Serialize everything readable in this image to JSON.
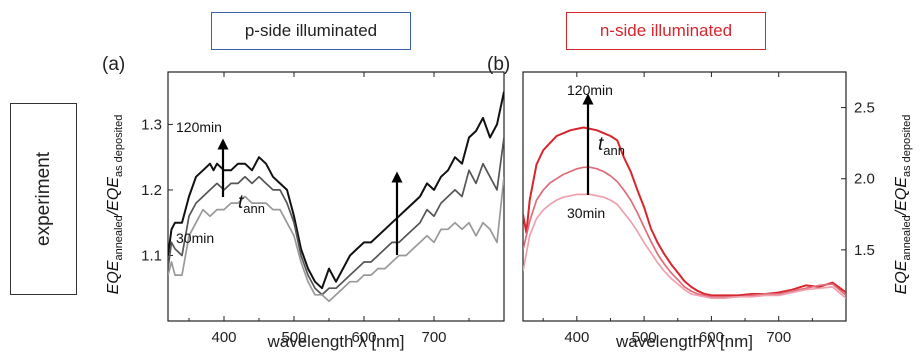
{
  "row_label": "experiment",
  "chart_data": [
    {
      "type": "line",
      "header": "p-side illuminated",
      "panel_label": "(a)",
      "xlabel": "wavelength λ [nm]",
      "ylabel_main": "EQE",
      "ylabel_sub1": "annealed",
      "ylabel_sep": "/EQE",
      "ylabel_sub2": "as deposited",
      "xlim": [
        320,
        800
      ],
      "ylim": [
        1.0,
        1.38
      ],
      "xticks": [
        400,
        500,
        600,
        700
      ],
      "yticks": [
        1.1,
        1.2,
        1.3
      ],
      "annotations": {
        "top": "120min",
        "bottom": "30min",
        "t_main": "t",
        "t_sub": "ann"
      },
      "colors": [
        "#111111",
        "#555555",
        "#999999"
      ],
      "series": [
        {
          "values": [
            [
              320,
              1.1
            ],
            [
              325,
              1.14
            ],
            [
              330,
              1.15
            ],
            [
              340,
              1.15
            ],
            [
              350,
              1.19
            ],
            [
              360,
              1.22
            ],
            [
              370,
              1.23
            ],
            [
              380,
              1.24
            ],
            [
              385,
              1.23
            ],
            [
              390,
              1.24
            ],
            [
              400,
              1.23
            ],
            [
              410,
              1.23
            ],
            [
              420,
              1.24
            ],
            [
              430,
              1.24
            ],
            [
              440,
              1.23
            ],
            [
              450,
              1.25
            ],
            [
              460,
              1.24
            ],
            [
              470,
              1.22
            ],
            [
              480,
              1.21
            ],
            [
              490,
              1.2
            ],
            [
              500,
              1.16
            ],
            [
              510,
              1.11
            ],
            [
              520,
              1.08
            ],
            [
              530,
              1.06
            ],
            [
              540,
              1.05
            ],
            [
              550,
              1.08
            ],
            [
              560,
              1.06
            ],
            [
              570,
              1.08
            ],
            [
              580,
              1.1
            ],
            [
              590,
              1.11
            ],
            [
              600,
              1.12
            ],
            [
              610,
              1.12
            ],
            [
              620,
              1.13
            ],
            [
              630,
              1.14
            ],
            [
              640,
              1.15
            ],
            [
              650,
              1.16
            ],
            [
              660,
              1.17
            ],
            [
              670,
              1.18
            ],
            [
              680,
              1.19
            ],
            [
              690,
              1.21
            ],
            [
              700,
              1.2
            ],
            [
              710,
              1.22
            ],
            [
              720,
              1.23
            ],
            [
              730,
              1.25
            ],
            [
              740,
              1.24
            ],
            [
              750,
              1.28
            ],
            [
              760,
              1.29
            ],
            [
              770,
              1.31
            ],
            [
              780,
              1.28
            ],
            [
              790,
              1.3
            ],
            [
              800,
              1.35
            ]
          ]
        },
        {
          "values": [
            [
              320,
              1.08
            ],
            [
              325,
              1.12
            ],
            [
              330,
              1.11
            ],
            [
              340,
              1.1
            ],
            [
              350,
              1.16
            ],
            [
              360,
              1.18
            ],
            [
              370,
              1.19
            ],
            [
              380,
              1.2
            ],
            [
              390,
              1.21
            ],
            [
              400,
              1.2
            ],
            [
              410,
              1.21
            ],
            [
              420,
              1.21
            ],
            [
              430,
              1.22
            ],
            [
              440,
              1.21
            ],
            [
              450,
              1.22
            ],
            [
              460,
              1.21
            ],
            [
              470,
              1.2
            ],
            [
              480,
              1.2
            ],
            [
              490,
              1.18
            ],
            [
              500,
              1.15
            ],
            [
              510,
              1.1
            ],
            [
              520,
              1.07
            ],
            [
              530,
              1.05
            ],
            [
              540,
              1.04
            ],
            [
              550,
              1.05
            ],
            [
              560,
              1.05
            ],
            [
              570,
              1.06
            ],
            [
              580,
              1.07
            ],
            [
              590,
              1.08
            ],
            [
              600,
              1.09
            ],
            [
              610,
              1.09
            ],
            [
              620,
              1.1
            ],
            [
              630,
              1.11
            ],
            [
              640,
              1.12
            ],
            [
              650,
              1.12
            ],
            [
              660,
              1.13
            ],
            [
              670,
              1.14
            ],
            [
              680,
              1.15
            ],
            [
              690,
              1.17
            ],
            [
              700,
              1.16
            ],
            [
              710,
              1.18
            ],
            [
              720,
              1.19
            ],
            [
              730,
              1.2
            ],
            [
              740,
              1.19
            ],
            [
              750,
              1.23
            ],
            [
              760,
              1.21
            ],
            [
              770,
              1.24
            ],
            [
              780,
              1.22
            ],
            [
              790,
              1.2
            ],
            [
              800,
              1.28
            ]
          ]
        },
        {
          "values": [
            [
              320,
              1.07
            ],
            [
              325,
              1.09
            ],
            [
              330,
              1.07
            ],
            [
              340,
              1.07
            ],
            [
              350,
              1.13
            ],
            [
              360,
              1.15
            ],
            [
              370,
              1.17
            ],
            [
              380,
              1.16
            ],
            [
              390,
              1.17
            ],
            [
              400,
              1.17
            ],
            [
              410,
              1.18
            ],
            [
              420,
              1.18
            ],
            [
              430,
              1.19
            ],
            [
              440,
              1.18
            ],
            [
              450,
              1.18
            ],
            [
              460,
              1.18
            ],
            [
              470,
              1.17
            ],
            [
              480,
              1.17
            ],
            [
              490,
              1.15
            ],
            [
              500,
              1.13
            ],
            [
              510,
              1.09
            ],
            [
              520,
              1.06
            ],
            [
              530,
              1.04
            ],
            [
              540,
              1.04
            ],
            [
              550,
              1.03
            ],
            [
              560,
              1.04
            ],
            [
              570,
              1.05
            ],
            [
              580,
              1.06
            ],
            [
              590,
              1.06
            ],
            [
              600,
              1.07
            ],
            [
              610,
              1.07
            ],
            [
              620,
              1.08
            ],
            [
              630,
              1.08
            ],
            [
              640,
              1.09
            ],
            [
              650,
              1.1
            ],
            [
              660,
              1.1
            ],
            [
              670,
              1.11
            ],
            [
              680,
              1.12
            ],
            [
              690,
              1.13
            ],
            [
              700,
              1.12
            ],
            [
              710,
              1.14
            ],
            [
              720,
              1.14
            ],
            [
              730,
              1.15
            ],
            [
              740,
              1.14
            ],
            [
              750,
              1.15
            ],
            [
              760,
              1.13
            ],
            [
              770,
              1.15
            ],
            [
              780,
              1.14
            ],
            [
              790,
              1.12
            ],
            [
              800,
              1.22
            ]
          ]
        }
      ]
    },
    {
      "type": "line",
      "header": "n-side illuminated",
      "panel_label": "(b)",
      "xlabel": "wavelength λ [nm]",
      "ylabel_main": "EQE",
      "ylabel_sub1": "annealed",
      "ylabel_sep": "/EQE",
      "ylabel_sub2": "as deposited",
      "xlim": [
        320,
        800
      ],
      "ylim": [
        1.0,
        2.75
      ],
      "yaxis_side": "right",
      "xticks": [
        400,
        500,
        600,
        700
      ],
      "yticks": [
        1.5,
        2.0,
        2.5
      ],
      "annotations": {
        "top": "120min",
        "bottom": "30min",
        "t_main": "t",
        "t_sub": "ann"
      },
      "colors": [
        "#d8262d",
        "#e06b7a",
        "#f0a0ac"
      ],
      "series": [
        {
          "values": [
            [
              320,
              1.75
            ],
            [
              325,
              1.62
            ],
            [
              330,
              1.85
            ],
            [
              340,
              2.1
            ],
            [
              350,
              2.2
            ],
            [
              360,
              2.25
            ],
            [
              370,
              2.3
            ],
            [
              380,
              2.32
            ],
            [
              390,
              2.34
            ],
            [
              400,
              2.35
            ],
            [
              410,
              2.36
            ],
            [
              420,
              2.35
            ],
            [
              430,
              2.34
            ],
            [
              440,
              2.32
            ],
            [
              450,
              2.3
            ],
            [
              460,
              2.27
            ],
            [
              470,
              2.15
            ],
            [
              480,
              2.05
            ],
            [
              490,
              1.92
            ],
            [
              500,
              1.8
            ],
            [
              510,
              1.65
            ],
            [
              520,
              1.55
            ],
            [
              530,
              1.47
            ],
            [
              540,
              1.4
            ],
            [
              550,
              1.34
            ],
            [
              560,
              1.28
            ],
            [
              570,
              1.24
            ],
            [
              580,
              1.21
            ],
            [
              590,
              1.19
            ],
            [
              600,
              1.18
            ],
            [
              620,
              1.18
            ],
            [
              640,
              1.18
            ],
            [
              660,
              1.19
            ],
            [
              680,
              1.19
            ],
            [
              700,
              1.2
            ],
            [
              720,
              1.22
            ],
            [
              740,
              1.25
            ],
            [
              760,
              1.24
            ],
            [
              780,
              1.27
            ],
            [
              800,
              1.2
            ]
          ]
        },
        {
          "values": [
            [
              320,
              1.5
            ],
            [
              330,
              1.7
            ],
            [
              340,
              1.85
            ],
            [
              350,
              1.92
            ],
            [
              360,
              1.97
            ],
            [
              370,
              2.0
            ],
            [
              380,
              2.03
            ],
            [
              390,
              2.05
            ],
            [
              400,
              2.07
            ],
            [
              410,
              2.08
            ],
            [
              420,
              2.08
            ],
            [
              430,
              2.07
            ],
            [
              440,
              2.05
            ],
            [
              450,
              2.02
            ],
            [
              460,
              1.98
            ],
            [
              470,
              1.92
            ],
            [
              480,
              1.85
            ],
            [
              490,
              1.76
            ],
            [
              500,
              1.66
            ],
            [
              510,
              1.56
            ],
            [
              520,
              1.47
            ],
            [
              530,
              1.4
            ],
            [
              540,
              1.34
            ],
            [
              550,
              1.29
            ],
            [
              560,
              1.24
            ],
            [
              570,
              1.21
            ],
            [
              580,
              1.19
            ],
            [
              590,
              1.18
            ],
            [
              600,
              1.17
            ],
            [
              620,
              1.17
            ],
            [
              640,
              1.17
            ],
            [
              660,
              1.18
            ],
            [
              680,
              1.19
            ],
            [
              700,
              1.19
            ],
            [
              720,
              1.21
            ],
            [
              740,
              1.23
            ],
            [
              760,
              1.25
            ],
            [
              780,
              1.26
            ],
            [
              800,
              1.18
            ]
          ]
        },
        {
          "values": [
            [
              320,
              1.35
            ],
            [
              330,
              1.6
            ],
            [
              340,
              1.72
            ],
            [
              350,
              1.78
            ],
            [
              360,
              1.82
            ],
            [
              370,
              1.85
            ],
            [
              380,
              1.87
            ],
            [
              390,
              1.88
            ],
            [
              400,
              1.89
            ],
            [
              410,
              1.89
            ],
            [
              420,
              1.89
            ],
            [
              430,
              1.88
            ],
            [
              440,
              1.87
            ],
            [
              450,
              1.85
            ],
            [
              460,
              1.82
            ],
            [
              470,
              1.76
            ],
            [
              480,
              1.7
            ],
            [
              490,
              1.63
            ],
            [
              500,
              1.55
            ],
            [
              510,
              1.48
            ],
            [
              520,
              1.41
            ],
            [
              530,
              1.35
            ],
            [
              540,
              1.3
            ],
            [
              550,
              1.26
            ],
            [
              560,
              1.22
            ],
            [
              570,
              1.19
            ],
            [
              580,
              1.18
            ],
            [
              590,
              1.17
            ],
            [
              600,
              1.16
            ],
            [
              620,
              1.16
            ],
            [
              640,
              1.17
            ],
            [
              660,
              1.17
            ],
            [
              680,
              1.18
            ],
            [
              700,
              1.18
            ],
            [
              720,
              1.2
            ],
            [
              740,
              1.22
            ],
            [
              760,
              1.23
            ],
            [
              780,
              1.24
            ],
            [
              800,
              1.16
            ]
          ]
        }
      ]
    }
  ]
}
